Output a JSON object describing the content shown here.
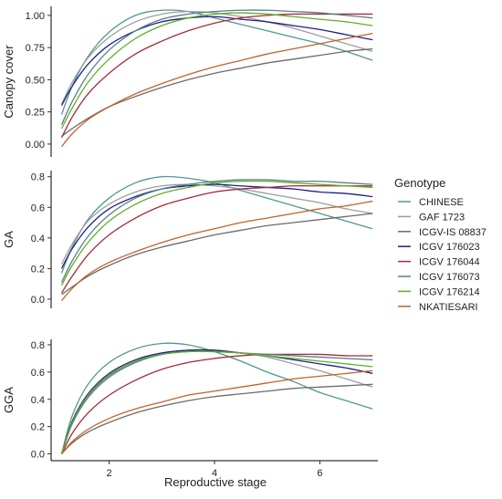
{
  "chart_data": {
    "type": "line",
    "xlabel": "Reproductive stage",
    "xlim": [
      0.9,
      7.1
    ],
    "xticks": [
      2,
      4,
      6
    ],
    "legend": {
      "title": "Genotype",
      "placement": "right"
    },
    "series_meta": [
      {
        "name": "CHINESE",
        "color": "#4f9a8e"
      },
      {
        "name": "GAF 1723",
        "color": "#9e9e9e"
      },
      {
        "name": "ICGV-IS 08837",
        "color": "#6b6b6b"
      },
      {
        "name": "ICGV 176023",
        "color": "#1f1f8a"
      },
      {
        "name": "ICGV 176044",
        "color": "#a52a3a"
      },
      {
        "name": "ICGV 176073",
        "color": "#5a7f88"
      },
      {
        "name": "ICGV 176214",
        "color": "#5fae28"
      },
      {
        "name": "NKATIESARI",
        "color": "#c0632a"
      }
    ],
    "x": [
      1.1,
      1.3,
      1.6,
      2.0,
      2.5,
      3.0,
      3.5,
      4.0,
      4.5,
      5.0,
      5.5,
      6.0,
      6.5,
      7.0
    ],
    "panels": [
      {
        "ylabel": "Canopy cover",
        "ylim": [
          -0.1,
          1.07
        ],
        "yticks": [
          "0.00",
          "0.25",
          "0.50",
          "0.75",
          "1.00"
        ],
        "series": [
          {
            "name": "CHINESE",
            "values": [
              0.23,
              0.45,
              0.68,
              0.87,
              1.0,
              1.04,
              1.03,
              0.98,
              0.93,
              0.88,
              0.83,
              0.78,
              0.72,
              0.65
            ]
          },
          {
            "name": "GAF 1723",
            "values": [
              0.31,
              0.48,
              0.67,
              0.83,
              0.95,
              1.01,
              1.03,
              1.02,
              0.99,
              0.95,
              0.9,
              0.84,
              0.78,
              0.72
            ]
          },
          {
            "name": "ICGV-IS 08837",
            "values": [
              0.06,
              0.12,
              0.2,
              0.29,
              0.37,
              0.44,
              0.5,
              0.55,
              0.59,
              0.63,
              0.66,
              0.69,
              0.72,
              0.74
            ]
          },
          {
            "name": "ICGV 176023",
            "values": [
              0.3,
              0.45,
              0.62,
              0.77,
              0.88,
              0.95,
              0.98,
              0.99,
              0.97,
              0.95,
              0.92,
              0.89,
              0.85,
              0.81
            ]
          },
          {
            "name": "ICGV 176044",
            "values": [
              0.05,
              0.21,
              0.39,
              0.55,
              0.7,
              0.8,
              0.88,
              0.94,
              0.98,
              1.0,
              1.01,
              1.01,
              1.01,
              1.01
            ]
          },
          {
            "name": "ICGV 176073",
            "values": [
              0.15,
              0.33,
              0.54,
              0.73,
              0.88,
              0.97,
              1.01,
              1.03,
              1.04,
              1.04,
              1.03,
              1.02,
              1.0,
              0.98
            ]
          },
          {
            "name": "ICGV 176214",
            "values": [
              0.12,
              0.28,
              0.48,
              0.66,
              0.82,
              0.92,
              0.98,
              1.01,
              1.02,
              1.01,
              0.99,
              0.97,
              0.95,
              0.92
            ]
          },
          {
            "name": "NKATIESARI",
            "values": [
              -0.02,
              0.08,
              0.19,
              0.29,
              0.39,
              0.47,
              0.54,
              0.6,
              0.65,
              0.7,
              0.74,
              0.78,
              0.82,
              0.86
            ]
          }
        ]
      },
      {
        "ylabel": "GA",
        "ylim": [
          -0.06,
          0.84
        ],
        "yticks": [
          "0.0",
          "0.2",
          "0.4",
          "0.6",
          "0.8"
        ],
        "series": [
          {
            "name": "CHINESE",
            "values": [
              0.17,
              0.34,
              0.52,
              0.66,
              0.76,
              0.8,
              0.79,
              0.76,
              0.71,
              0.66,
              0.61,
              0.56,
              0.51,
              0.46
            ]
          },
          {
            "name": "GAF 1723",
            "values": [
              0.23,
              0.36,
              0.51,
              0.62,
              0.7,
              0.74,
              0.75,
              0.74,
              0.72,
              0.69,
              0.66,
              0.63,
              0.59,
              0.56
            ]
          },
          {
            "name": "ICGV-IS 08837",
            "values": [
              0.03,
              0.08,
              0.15,
              0.22,
              0.29,
              0.34,
              0.38,
              0.42,
              0.45,
              0.48,
              0.5,
              0.52,
              0.54,
              0.56
            ]
          },
          {
            "name": "ICGV 176023",
            "values": [
              0.2,
              0.33,
              0.47,
              0.59,
              0.67,
              0.72,
              0.74,
              0.75,
              0.74,
              0.73,
              0.72,
              0.7,
              0.69,
              0.67
            ]
          },
          {
            "name": "ICGV 176044",
            "values": [
              0.04,
              0.15,
              0.29,
              0.42,
              0.53,
              0.61,
              0.66,
              0.7,
              0.72,
              0.73,
              0.74,
              0.74,
              0.74,
              0.74
            ]
          },
          {
            "name": "ICGV 176073",
            "values": [
              0.11,
              0.25,
              0.41,
              0.55,
              0.66,
              0.72,
              0.75,
              0.77,
              0.78,
              0.78,
              0.77,
              0.77,
              0.76,
              0.75
            ]
          },
          {
            "name": "ICGV 176214",
            "values": [
              0.09,
              0.22,
              0.37,
              0.51,
              0.62,
              0.69,
              0.73,
              0.76,
              0.77,
              0.77,
              0.76,
              0.75,
              0.74,
              0.73
            ]
          },
          {
            "name": "NKATIESARI",
            "values": [
              -0.01,
              0.07,
              0.16,
              0.24,
              0.31,
              0.37,
              0.42,
              0.46,
              0.5,
              0.53,
              0.56,
              0.59,
              0.61,
              0.64
            ]
          }
        ]
      },
      {
        "ylabel": "GGA",
        "ylim": [
          -0.05,
          0.84
        ],
        "yticks": [
          "0.0",
          "0.2",
          "0.4",
          "0.6",
          "0.8"
        ],
        "series": [
          {
            "name": "CHINESE",
            "values": [
              0.0,
              0.28,
              0.51,
              0.67,
              0.77,
              0.81,
              0.8,
              0.75,
              0.68,
              0.6,
              0.53,
              0.45,
              0.39,
              0.33
            ]
          },
          {
            "name": "GAF 1723",
            "values": [
              0.0,
              0.22,
              0.41,
              0.56,
              0.67,
              0.73,
              0.76,
              0.76,
              0.74,
              0.71,
              0.66,
              0.61,
              0.55,
              0.49
            ]
          },
          {
            "name": "ICGV-IS 08837",
            "values": [
              0.0,
              0.08,
              0.16,
              0.23,
              0.3,
              0.35,
              0.39,
              0.42,
              0.44,
              0.46,
              0.48,
              0.49,
              0.5,
              0.51
            ]
          },
          {
            "name": "ICGV 176023",
            "values": [
              0.0,
              0.24,
              0.44,
              0.59,
              0.69,
              0.74,
              0.76,
              0.76,
              0.74,
              0.72,
              0.69,
              0.66,
              0.63,
              0.59
            ]
          },
          {
            "name": "ICGV 176044",
            "values": [
              0.0,
              0.15,
              0.3,
              0.43,
              0.54,
              0.62,
              0.67,
              0.7,
              0.72,
              0.73,
              0.73,
              0.73,
              0.72,
              0.72
            ]
          },
          {
            "name": "ICGV 176073",
            "values": [
              0.0,
              0.22,
              0.42,
              0.57,
              0.67,
              0.73,
              0.75,
              0.75,
              0.74,
              0.73,
              0.72,
              0.71,
              0.7,
              0.69
            ]
          },
          {
            "name": "ICGV 176214",
            "values": [
              0.0,
              0.23,
              0.43,
              0.58,
              0.68,
              0.73,
              0.75,
              0.75,
              0.74,
              0.72,
              0.7,
              0.68,
              0.66,
              0.64
            ]
          },
          {
            "name": "NKATIESARI",
            "values": [
              0.0,
              0.09,
              0.18,
              0.26,
              0.33,
              0.38,
              0.43,
              0.46,
              0.49,
              0.52,
              0.55,
              0.57,
              0.59,
              0.61
            ]
          }
        ]
      }
    ]
  }
}
